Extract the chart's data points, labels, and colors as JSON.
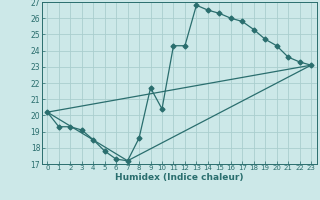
{
  "xlabel": "Humidex (Indice chaleur)",
  "bg_color": "#cce8e8",
  "grid_color": "#aacece",
  "line_color": "#2a6e6e",
  "xlim": [
    -0.5,
    23.5
  ],
  "ylim": [
    17,
    27
  ],
  "xticks": [
    0,
    1,
    2,
    3,
    4,
    5,
    6,
    7,
    8,
    9,
    10,
    11,
    12,
    13,
    14,
    15,
    16,
    17,
    18,
    19,
    20,
    21,
    22,
    23
  ],
  "yticks": [
    17,
    18,
    19,
    20,
    21,
    22,
    23,
    24,
    25,
    26,
    27
  ],
  "curve1_x": [
    0,
    1,
    2,
    3,
    4,
    5,
    6,
    7,
    8,
    9,
    10,
    11,
    12,
    13,
    14,
    15,
    16,
    17,
    18,
    19,
    20,
    21,
    22,
    23
  ],
  "curve1_y": [
    20.2,
    19.3,
    19.3,
    19.1,
    18.5,
    17.8,
    17.3,
    17.2,
    18.6,
    21.7,
    20.4,
    24.3,
    24.3,
    26.8,
    26.5,
    26.3,
    26.0,
    25.8,
    25.3,
    24.7,
    24.3,
    23.6,
    23.3,
    23.1
  ],
  "curve2_x": [
    0,
    7,
    23
  ],
  "curve2_y": [
    20.2,
    17.2,
    23.1
  ],
  "curve3_x": [
    0,
    23
  ],
  "curve3_y": [
    20.2,
    23.1
  ]
}
